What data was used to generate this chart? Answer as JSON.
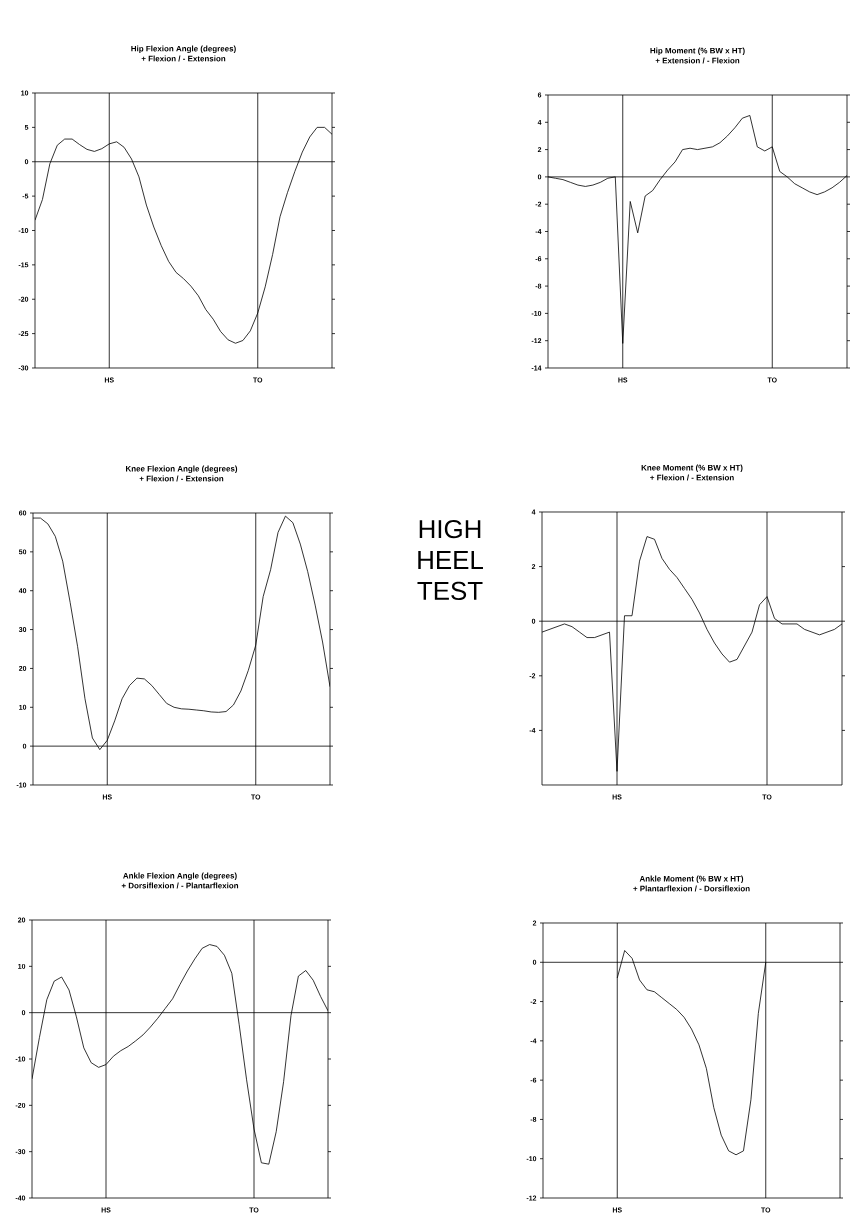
{
  "chart_data": [
    {
      "type": "line",
      "title": "Hip Flexion Angle (degrees)",
      "subtitle": "+ Flexion / - Extension",
      "categories": [
        null,
        null,
        null,
        null,
        null,
        null,
        null,
        null,
        null,
        null,
        "HS",
        null,
        null,
        null,
        null,
        null,
        null,
        null,
        null,
        null,
        null,
        null,
        null,
        null,
        null,
        null,
        null,
        null,
        null,
        null,
        "TO",
        null,
        null,
        null,
        null,
        null,
        null,
        null,
        null,
        null,
        null
      ],
      "ylim": [
        -30,
        10
      ],
      "yticks": [
        10,
        5,
        0,
        -5,
        -10,
        -15,
        -20,
        -25,
        -30
      ],
      "grid": "x",
      "ref_lines": [
        {
          "axis": "y",
          "value": 0
        }
      ],
      "series": [
        {
          "color": "#000000",
          "values": [
            -8.5,
            -5.5,
            -0.3,
            2.4,
            3.3,
            3.3,
            2.5,
            1.8,
            1.5,
            1.9,
            2.6,
            2.9,
            2.1,
            0.4,
            -2.2,
            -6.3,
            -9.5,
            -12.2,
            -14.5,
            -16.1,
            -17.0,
            -18.1,
            -19.5,
            -21.5,
            -22.9,
            -24.7,
            -25.9,
            -26.4,
            -26.0,
            -24.6,
            -22.0,
            -18.2,
            -13.5,
            -8.0,
            -4.5,
            -1.4,
            1.4,
            3.6,
            5.0,
            5.0,
            4.0
          ]
        }
      ]
    },
    {
      "type": "line",
      "title": "Hip Moment (% BW x HT)",
      "subtitle": "+ Extension / - Flexion",
      "categories": [
        null,
        null,
        null,
        null,
        null,
        null,
        null,
        null,
        null,
        null,
        "HS",
        null,
        null,
        null,
        null,
        null,
        null,
        null,
        null,
        null,
        null,
        null,
        null,
        null,
        null,
        null,
        null,
        null,
        null,
        null,
        "TO",
        null,
        null,
        null,
        null,
        null,
        null,
        null,
        null,
        null,
        null
      ],
      "ylim": [
        -14,
        6
      ],
      "yticks": [
        6,
        4,
        2,
        0,
        -2,
        -4,
        -6,
        -8,
        -10,
        -12,
        -14
      ],
      "grid": "x",
      "ref_lines": [
        {
          "axis": "y",
          "value": 0
        }
      ],
      "series": [
        {
          "color": "#000000",
          "values": [
            0.0,
            -0.1,
            -0.2,
            -0.4,
            -0.6,
            -0.7,
            -0.6,
            -0.4,
            -0.1,
            0.0,
            -12.2,
            -1.8,
            -4.1,
            -1.4,
            -1.0,
            -0.2,
            0.5,
            1.1,
            2.0,
            2.1,
            2.0,
            2.1,
            2.2,
            2.5,
            3.0,
            3.6,
            4.3,
            4.5,
            2.2,
            1.9,
            2.2,
            0.4,
            0.0,
            -0.5,
            -0.8,
            -1.1,
            -1.3,
            -1.1,
            -0.8,
            -0.4,
            0.1
          ]
        }
      ]
    },
    {
      "type": "line",
      "title": "Knee Flexion Angle (degrees)",
      "subtitle": "+ Flexion / - Extension",
      "categories": [
        null,
        null,
        null,
        null,
        null,
        null,
        null,
        null,
        null,
        null,
        "HS",
        null,
        null,
        null,
        null,
        null,
        null,
        null,
        null,
        null,
        null,
        null,
        null,
        null,
        null,
        null,
        null,
        null,
        null,
        null,
        "TO",
        null,
        null,
        null,
        null,
        null,
        null,
        null,
        null,
        null,
        null
      ],
      "ylim": [
        -10,
        60
      ],
      "yticks": [
        60,
        50,
        40,
        30,
        20,
        10,
        0,
        -10
      ],
      "grid": "x",
      "ref_lines": [
        {
          "axis": "y",
          "value": 0
        }
      ],
      "series": [
        {
          "color": "#000000",
          "values": [
            58.7,
            58.7,
            57.2,
            54.0,
            47.6,
            37.0,
            25.7,
            12.2,
            2.1,
            -0.9,
            1.5,
            6.5,
            12.2,
            15.6,
            17.5,
            17.3,
            15.6,
            13.3,
            11.0,
            10.0,
            9.6,
            9.5,
            9.3,
            9.1,
            8.8,
            8.7,
            8.9,
            10.6,
            14.2,
            19.5,
            26.0,
            38.5,
            45.4,
            55.0,
            59.2,
            57.5,
            52.0,
            44.9,
            36.3,
            26.8,
            15.3
          ]
        }
      ]
    },
    {
      "type": "other",
      "title": "HIGH HEEL TEST"
    },
    {
      "type": "line",
      "title": "Knee Moment (% BW x HT)",
      "subtitle": "+ Flexion / - Extension",
      "categories": [
        null,
        null,
        null,
        null,
        null,
        null,
        null,
        null,
        null,
        null,
        "HS",
        null,
        null,
        null,
        null,
        null,
        null,
        null,
        null,
        null,
        null,
        null,
        null,
        null,
        null,
        null,
        null,
        null,
        null,
        null,
        "TO",
        null,
        null,
        null,
        null,
        null,
        null,
        null,
        null,
        null,
        null
      ],
      "ylim": [
        -6,
        4
      ],
      "yticks": [
        4,
        2,
        0,
        -2,
        -4
      ],
      "grid": "x",
      "ref_lines": [
        {
          "axis": "y",
          "value": 0
        }
      ],
      "series": [
        {
          "color": "#000000",
          "values": [
            -0.4,
            -0.3,
            -0.2,
            -0.1,
            -0.2,
            -0.4,
            -0.6,
            -0.6,
            -0.5,
            -0.4,
            -5.5,
            0.2,
            0.2,
            2.2,
            3.1,
            3.0,
            2.3,
            1.9,
            1.6,
            1.2,
            0.8,
            0.3,
            -0.3,
            -0.8,
            -1.2,
            -1.5,
            -1.4,
            -0.9,
            -0.4,
            0.6,
            0.9,
            0.1,
            -0.1,
            -0.1,
            -0.1,
            -0.3,
            -0.4,
            -0.5,
            -0.4,
            -0.3,
            -0.1
          ]
        }
      ]
    },
    {
      "type": "line",
      "title": "Ankle Flexion Angle (degrees)",
      "subtitle": "+ Dorsiflexion / - Plantarflexion",
      "categories": [
        null,
        null,
        null,
        null,
        null,
        null,
        null,
        null,
        null,
        null,
        "HS",
        null,
        null,
        null,
        null,
        null,
        null,
        null,
        null,
        null,
        null,
        null,
        null,
        null,
        null,
        null,
        null,
        null,
        null,
        null,
        "TO",
        null,
        null,
        null,
        null,
        null,
        null,
        null,
        null,
        null,
        null
      ],
      "ylim": [
        -40,
        20
      ],
      "yticks": [
        20,
        10,
        0,
        -10,
        -20,
        -30,
        -40
      ],
      "grid": "x",
      "ref_lines": [
        {
          "axis": "y",
          "value": 0
        }
      ],
      "series": [
        {
          "color": "#000000",
          "values": [
            -14.3,
            -5.4,
            2.8,
            6.8,
            7.7,
            4.9,
            -0.9,
            -7.6,
            -10.8,
            -11.8,
            -11.2,
            -9.4,
            -8.2,
            -7.3,
            -6.1,
            -4.8,
            -3.1,
            -1.2,
            0.9,
            3.0,
            6.1,
            9.0,
            11.6,
            13.9,
            14.7,
            14.3,
            12.4,
            8.5,
            -2.6,
            -14.5,
            -25.1,
            -32.4,
            -32.7,
            -25.7,
            -14.9,
            -0.6,
            7.9,
            9.1,
            7.0,
            3.5,
            0.4
          ]
        }
      ]
    },
    {
      "type": "line",
      "title": "Ankle Moment (% BW x HT)",
      "subtitle": "+ Plantarflexion / - Dorsiflexion",
      "categories": [
        null,
        null,
        null,
        null,
        null,
        null,
        null,
        null,
        null,
        null,
        "HS",
        null,
        null,
        null,
        null,
        null,
        null,
        null,
        null,
        null,
        null,
        null,
        null,
        null,
        null,
        null,
        null,
        null,
        null,
        null,
        "TO",
        null,
        null,
        null,
        null,
        null,
        null,
        null,
        null,
        null,
        null
      ],
      "ylim": [
        -12,
        2
      ],
      "yticks": [
        2,
        0,
        -2,
        -4,
        -6,
        -8,
        -10,
        -12
      ],
      "grid": "x",
      "ref_lines": [
        {
          "axis": "y",
          "value": 0
        }
      ],
      "series": [
        {
          "color": "#000000",
          "values": [
            null,
            null,
            null,
            null,
            null,
            null,
            null,
            null,
            null,
            null,
            -0.8,
            0.6,
            0.2,
            -0.9,
            -1.4,
            -1.5,
            -1.8,
            -2.1,
            -2.4,
            -2.8,
            -3.4,
            -4.2,
            -5.4,
            -7.4,
            -8.8,
            -9.6,
            -9.8,
            -9.6,
            -7.0,
            -2.6,
            0.0,
            null,
            null,
            null,
            null,
            null,
            null,
            null,
            null,
            null,
            null
          ]
        }
      ]
    }
  ]
}
